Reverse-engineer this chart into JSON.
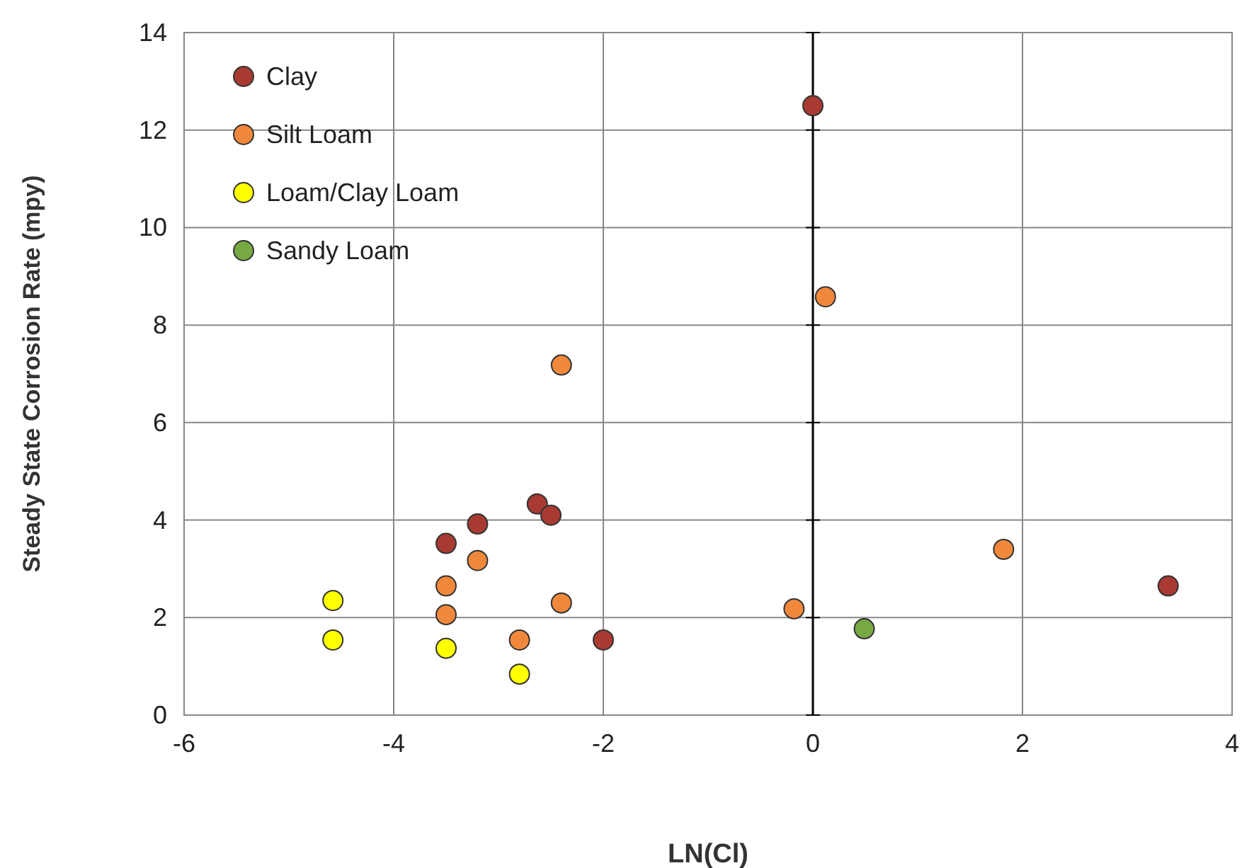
{
  "chart_data": {
    "type": "scatter",
    "xlabel": "LN(Cl)",
    "ylabel": "Steady State Corrosion Rate (mpy)",
    "xlim": [
      -6,
      4
    ],
    "xticks": [
      -6,
      -4,
      -2,
      0,
      2,
      4
    ],
    "ylim": [
      0,
      14
    ],
    "yticks": [
      0,
      2,
      4,
      6,
      8,
      10,
      12,
      14
    ],
    "grid": true,
    "legend": "top left",
    "marker": "circle",
    "ref_lines": [
      {
        "axis": "x",
        "value": 0,
        "color": "#000000"
      }
    ],
    "series": [
      {
        "name": "Clay",
        "color": "#a83a32",
        "x": [
          0,
          -3.5,
          -3.2,
          -2.63,
          -2.5,
          -2,
          3.39
        ],
        "values": [
          12.5,
          3.52,
          3.92,
          4.33,
          4.1,
          1.54,
          2.65
        ]
      },
      {
        "name": "Silt Loam",
        "color": "#f0883c",
        "x": [
          0.12,
          -2.4,
          -3.2,
          -3.5,
          -3.5,
          -2.4,
          -2.8,
          -0.18,
          1.82
        ],
        "values": [
          8.58,
          7.18,
          3.17,
          2.65,
          2.06,
          2.3,
          1.54,
          2.18,
          3.4
        ]
      },
      {
        "name": "Loam/Clay Loam",
        "color": "#ffff00",
        "x": [
          -4.58,
          -4.58,
          -3.5,
          -2.8
        ],
        "values": [
          2.35,
          1.54,
          1.37,
          0.84
        ]
      },
      {
        "name": "Sandy Loam",
        "color": "#77a844",
        "x": [
          0.49
        ],
        "values": [
          1.77
        ]
      }
    ]
  }
}
